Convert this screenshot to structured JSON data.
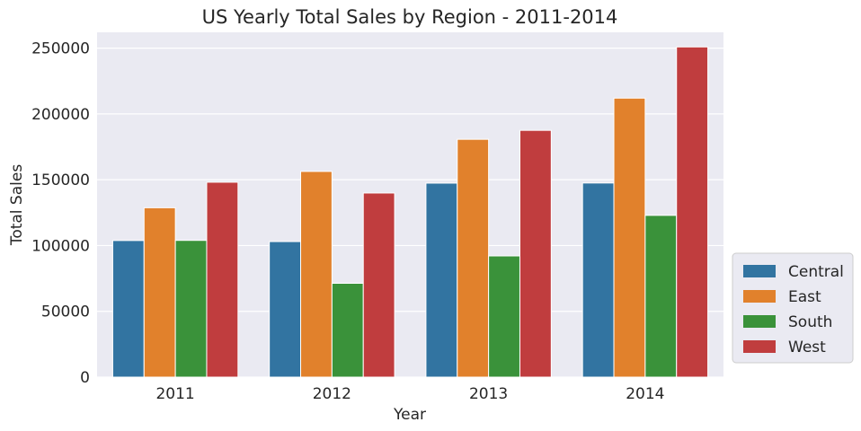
{
  "chart_data": {
    "type": "bar",
    "title": "US Yearly Total Sales by Region - 2011-2014",
    "xlabel": "Year",
    "ylabel": "Total Sales",
    "categories": [
      "2011",
      "2012",
      "2013",
      "2014"
    ],
    "ylim": [
      0,
      262000
    ],
    "yticks": [
      0,
      50000,
      100000,
      150000,
      200000,
      250000
    ],
    "ytick_labels": [
      "0",
      "50000",
      "100000",
      "150000",
      "200000",
      "250000"
    ],
    "grid": true,
    "legend_position": "right, outside plot, lower",
    "background_color": "#eaeaf2",
    "series": [
      {
        "name": "Central",
        "color": "#3274a1",
        "values": [
          103800,
          103000,
          147400,
          147500
        ]
      },
      {
        "name": "East",
        "color": "#e1812c",
        "values": [
          128700,
          156300,
          180700,
          212000
        ]
      },
      {
        "name": "South",
        "color": "#3a923a",
        "values": [
          103900,
          71300,
          92100,
          122900
        ]
      },
      {
        "name": "West",
        "color": "#c03d3e",
        "values": [
          148100,
          139900,
          187500,
          250900
        ]
      }
    ]
  }
}
